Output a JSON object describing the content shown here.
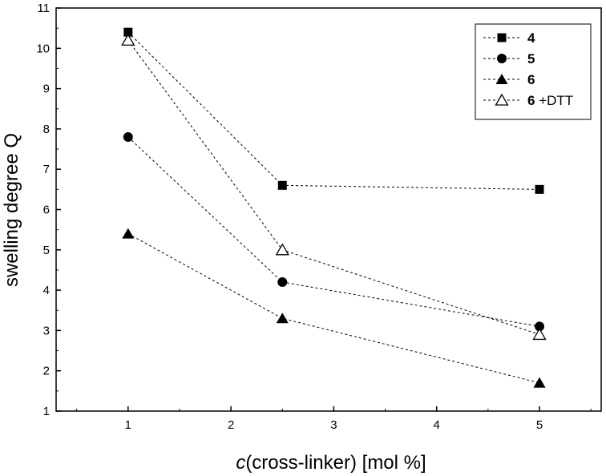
{
  "chart_data": {
    "type": "line",
    "x": [
      1,
      2.5,
      5
    ],
    "xlabel_italic": "c",
    "xlabel_rest": "(cross-linker) [mol %]",
    "ylabel": "swelling degree Q",
    "xlim": [
      0.3,
      5.6
    ],
    "ylim": [
      1,
      11
    ],
    "xticks": [
      "1",
      "2",
      "3",
      "4",
      "5"
    ],
    "yticks": [
      "1",
      "2",
      "3",
      "4",
      "5",
      "6",
      "7",
      "8",
      "9",
      "10",
      "11"
    ],
    "grid": false,
    "legend_position": "top-right",
    "line_style": "dashed",
    "series": [
      {
        "name": "4",
        "marker": "square-filled",
        "values": [
          10.4,
          6.6,
          6.5
        ]
      },
      {
        "name": "5",
        "marker": "circle-filled",
        "values": [
          7.8,
          4.2,
          3.1
        ]
      },
      {
        "name": "6",
        "marker": "triangle-filled",
        "values": [
          5.4,
          3.3,
          1.7
        ]
      },
      {
        "name": "6",
        "suffix": " +DTT",
        "marker": "triangle-open",
        "values": [
          10.2,
          5.0,
          2.9
        ]
      }
    ]
  }
}
